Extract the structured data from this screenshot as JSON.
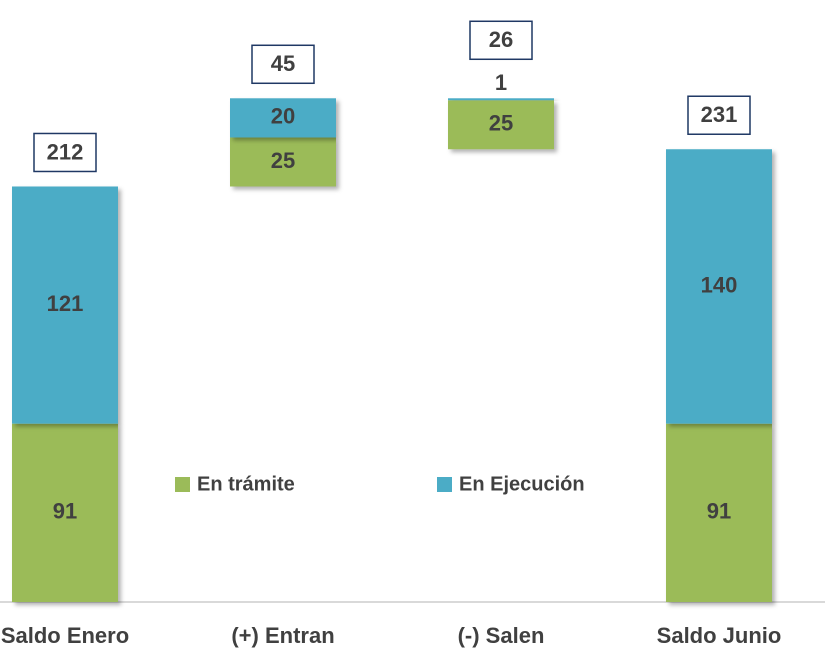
{
  "chart_data": {
    "type": "waterfall",
    "categories": [
      "Saldo Enero",
      "(+) Entran",
      "(-) Salen",
      "Saldo Junio"
    ],
    "series": [
      {
        "name": "En trámite",
        "color": "#9bbb59",
        "values": [
          91,
          25,
          25,
          91
        ]
      },
      {
        "name": "En Ejecución",
        "color": "#4bacc6",
        "values": [
          121,
          20,
          1,
          140
        ]
      }
    ],
    "totals": [
      212,
      45,
      26,
      231
    ],
    "ylim": [
      0,
      300
    ],
    "legend": "center"
  }
}
